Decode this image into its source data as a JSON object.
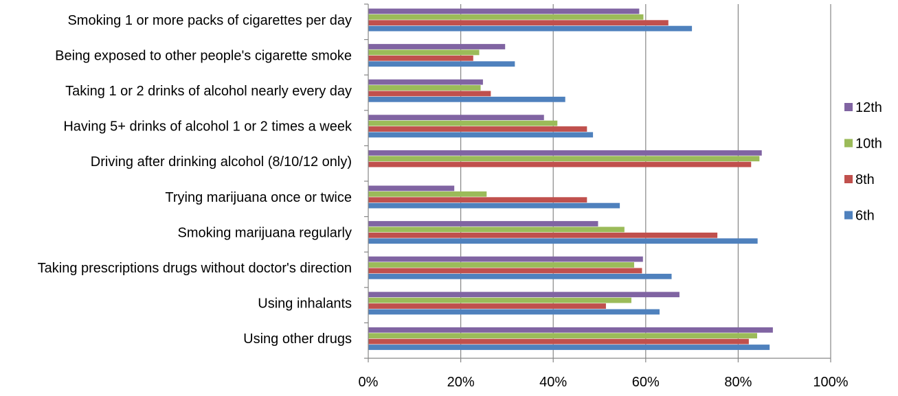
{
  "chart_data": {
    "type": "bar",
    "orientation": "horizontal",
    "title": "",
    "xlabel": "",
    "ylabel": "",
    "xlim": [
      0,
      100
    ],
    "x_ticks": [
      "0%",
      "20%",
      "40%",
      "60%",
      "80%",
      "100%"
    ],
    "grid": "vertical gridlines",
    "legend_position": "right",
    "categories": [
      "Smoking 1 or more packs of cigarettes per day",
      "Being exposed to other people's cigarette smoke",
      "Taking 1 or 2 drinks of alcohol nearly every day",
      "Having 5+ drinks of alcohol 1 or 2 times a week",
      "Driving after drinking alcohol (8/10/12 only)",
      "Trying marijuana once or twice",
      "Smoking marijuana regularly",
      "Taking prescriptions drugs without doctor's direction",
      "Using inhalants",
      "Using other drugs"
    ],
    "series": [
      {
        "name": "12th",
        "color": "#8064A2",
        "values": [
          58.6,
          29.6,
          24.8,
          38.0,
          85.1,
          18.6,
          49.7,
          59.4,
          67.3,
          87.5
        ]
      },
      {
        "name": "10th",
        "color": "#9BBB59",
        "values": [
          59.5,
          24.0,
          24.3,
          40.9,
          84.6,
          25.6,
          55.4,
          57.5,
          56.9,
          84.1
        ]
      },
      {
        "name": "8th",
        "color": "#C0504D",
        "values": [
          64.9,
          22.7,
          26.5,
          47.3,
          82.8,
          47.3,
          75.5,
          59.2,
          51.4,
          82.3
        ]
      },
      {
        "name": "6th",
        "color": "#4F81BD",
        "values": [
          70.0,
          31.7,
          42.6,
          48.6,
          null,
          54.4,
          84.2,
          65.6,
          63.0,
          86.8
        ]
      }
    ]
  }
}
